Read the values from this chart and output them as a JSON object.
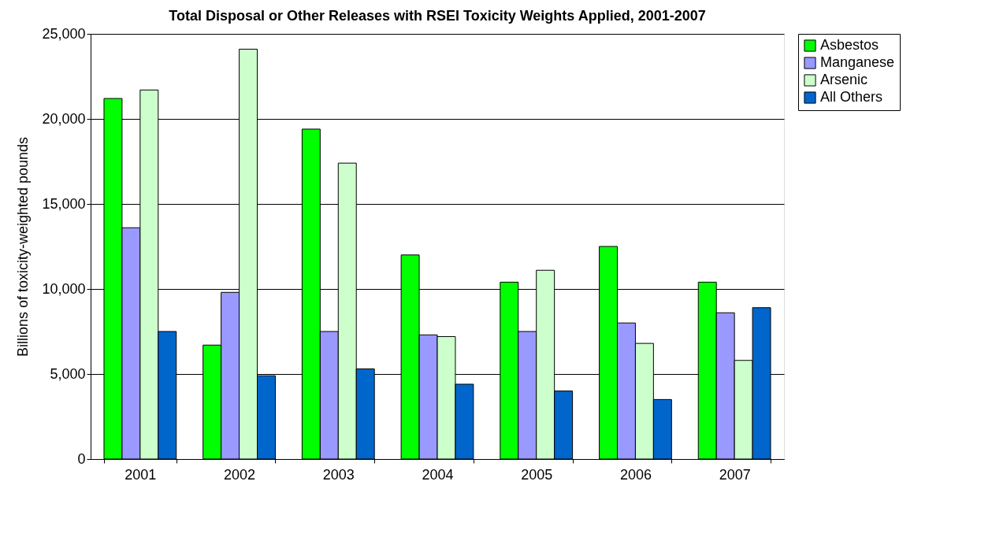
{
  "chart_data": {
    "type": "bar",
    "title": "Total Disposal or Other Releases with RSEI Toxicity Weights Applied, 2001-2007",
    "ylabel": "Billions of toxicity-weighted pounds",
    "categories": [
      "2001",
      "2002",
      "2003",
      "2004",
      "2005",
      "2006",
      "2007"
    ],
    "series": [
      {
        "name": "Asbestos",
        "color": "#00ff00",
        "values": [
          21200,
          6700,
          19400,
          12000,
          10400,
          12500,
          10400
        ]
      },
      {
        "name": "Manganese",
        "color": "#9999ff",
        "values": [
          13600,
          9800,
          7500,
          7300,
          7500,
          8000,
          8600
        ]
      },
      {
        "name": "Arsenic",
        "color": "#ccffcc",
        "values": [
          21700,
          24100,
          17400,
          7200,
          11100,
          6800,
          5800
        ]
      },
      {
        "name": "All Others",
        "color": "#0066cc",
        "values": [
          7500,
          4900,
          5300,
          4400,
          4000,
          3500,
          8900
        ]
      }
    ],
    "ylim": [
      0,
      25000
    ],
    "yticks": [
      0,
      {
        "value": 5000,
        "label": "5,000"
      },
      {
        "value": 10000,
        "label": "10,000"
      },
      {
        "value": 15000,
        "label": "15,000"
      },
      {
        "value": 20000,
        "label": "20,000"
      },
      {
        "value": 25000,
        "label": "25,000"
      }
    ],
    "grid": "y",
    "legend": "right"
  }
}
